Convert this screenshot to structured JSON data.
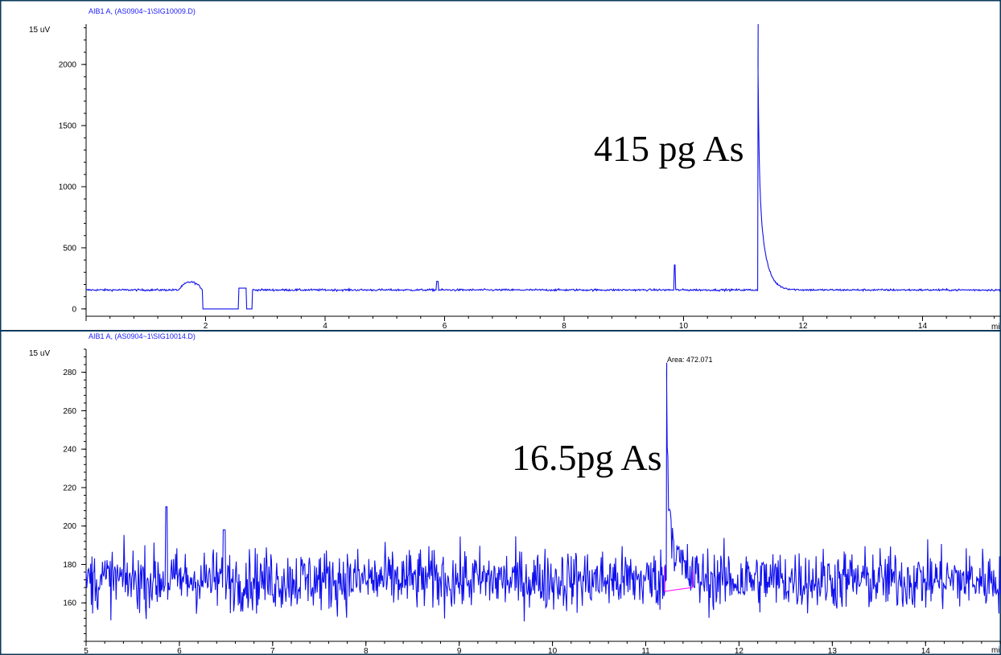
{
  "colors": {
    "frame": "#0b3a5c",
    "trace": "#1010ee",
    "baseline": "#ff00ff",
    "file_label": "#1a1aff"
  },
  "chart_data": [
    {
      "type": "line",
      "file_label": "AIB1 A,  (AS0904~1\\SIG10009.D)",
      "y_unit_label": "15 uV",
      "x_unit_label": "mi",
      "annotation": "415 pg As",
      "xlim": [
        0,
        15.3
      ],
      "ylim": [
        -60,
        2330
      ],
      "y_ticks": [
        0,
        500,
        1000,
        1500,
        2000
      ],
      "y_tick_labels": [
        "0",
        "500",
        "1000",
        "1500",
        "2000"
      ],
      "x_ticks": [
        2,
        4,
        6,
        8,
        10,
        12,
        14
      ],
      "x_tick_labels": [
        "2",
        "4",
        "6",
        "8",
        "10",
        "12",
        "14"
      ],
      "baseline_level": 155,
      "features": [
        {
          "kind": "hump",
          "start": 1.55,
          "end": 1.95,
          "peak_value": 220
        },
        {
          "kind": "drop",
          "start": 1.95,
          "end": 2.55,
          "value": 0
        },
        {
          "kind": "step",
          "start": 2.55,
          "end": 2.68,
          "value": 170
        },
        {
          "kind": "drop",
          "start": 2.68,
          "end": 2.78,
          "value": 0
        },
        {
          "kind": "spike",
          "x": 5.88,
          "value": 225
        },
        {
          "kind": "spike",
          "x": 9.85,
          "value": 360
        },
        {
          "kind": "main_peak",
          "x": 11.24,
          "value": 2330
        }
      ]
    },
    {
      "type": "line",
      "file_label": "AIB1 A,  (AS0904~1\\SIG10014.D)",
      "y_unit_label": "15 uV",
      "x_unit_label": "mi",
      "annotation": "16.5pg As",
      "peak_label": "Area: 472.071",
      "xlim": [
        5,
        14.8
      ],
      "ylim": [
        140,
        292
      ],
      "y_ticks": [
        160,
        180,
        200,
        220,
        240,
        260,
        280
      ],
      "y_tick_labels": [
        "160",
        "180",
        "200",
        "220",
        "240",
        "260",
        "280"
      ],
      "x_ticks": [
        5,
        6,
        7,
        8,
        9,
        10,
        11,
        12,
        13,
        14
      ],
      "x_tick_labels": [
        "5",
        "6",
        "7",
        "8",
        "9",
        "10",
        "11",
        "12",
        "13",
        "14"
      ],
      "baseline_level": 172,
      "features": [
        {
          "kind": "spike",
          "x": 5.86,
          "value": 210
        },
        {
          "kind": "spike",
          "x": 6.48,
          "value": 198
        },
        {
          "kind": "main_peak",
          "x": 11.22,
          "value": 285
        }
      ],
      "integration_baseline": {
        "start": 11.2,
        "end": 11.5,
        "start_value": 166,
        "end_value": 168
      }
    }
  ]
}
